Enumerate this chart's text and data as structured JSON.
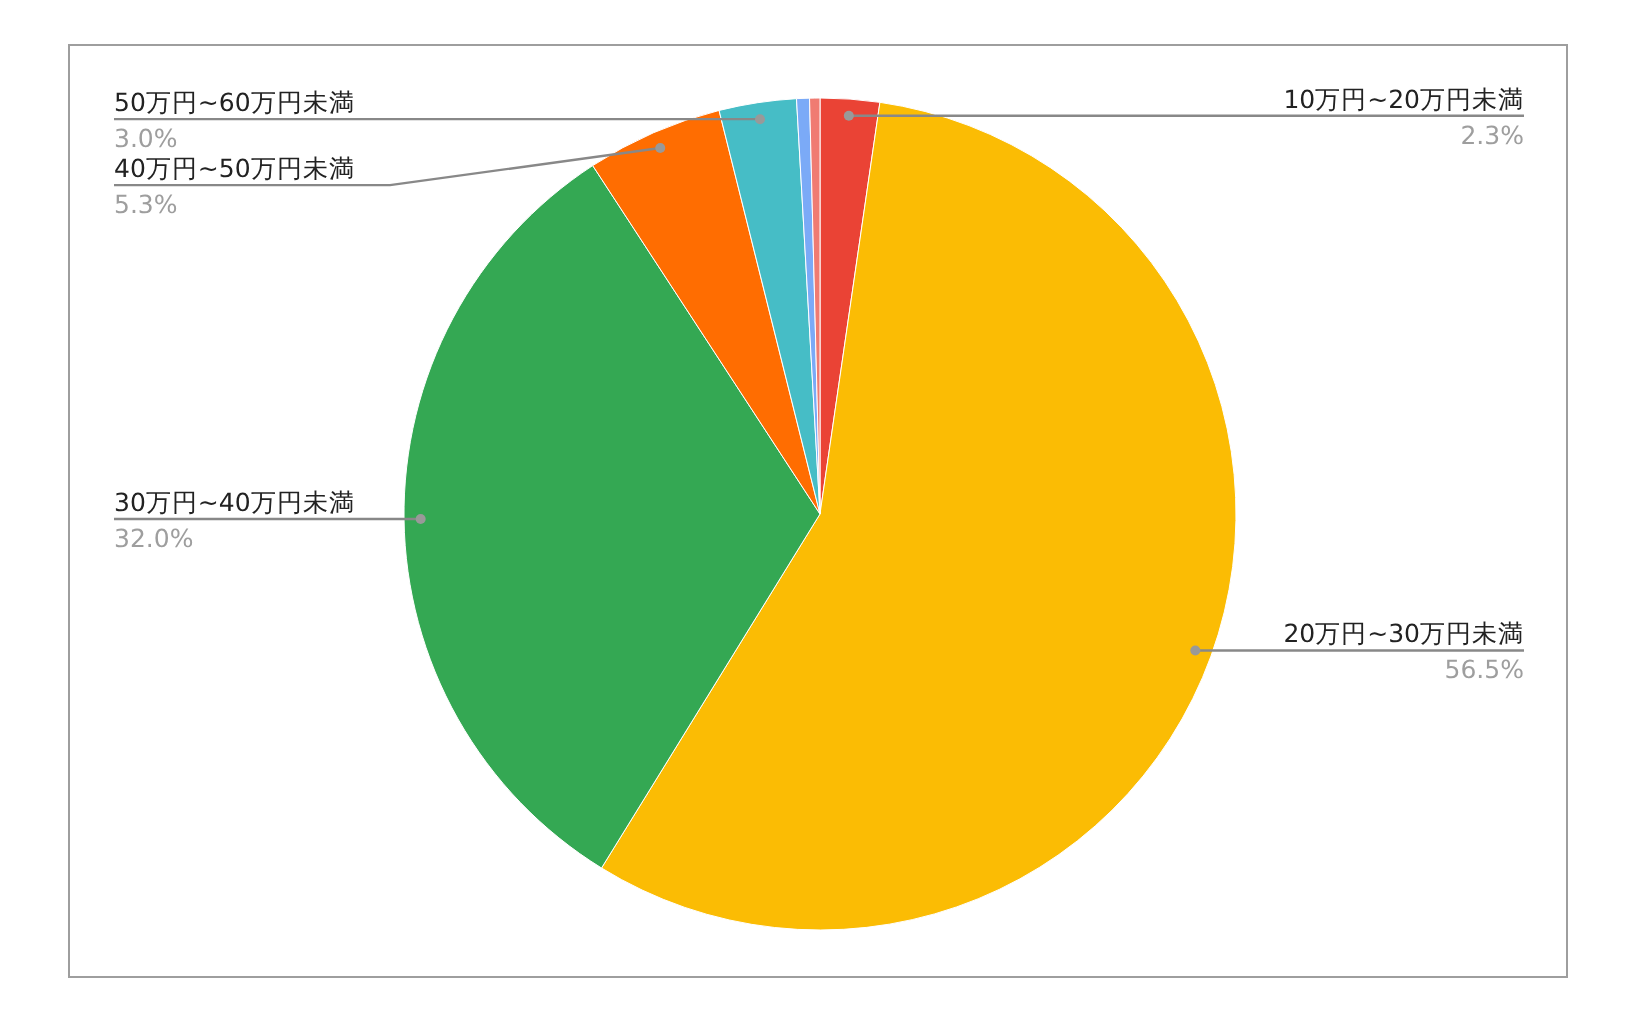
{
  "chart_data": {
    "type": "pie",
    "categories": [
      "10万円~20万円未満",
      "20万円~30万円未満",
      "30万円~40万円未満",
      "40万円~50万円未満",
      "50万円~60万円未満",
      null,
      null
    ],
    "values": [
      2.3,
      56.5,
      32.0,
      5.3,
      3.0,
      0.5,
      0.4
    ],
    "colors": [
      "#ea4335",
      "#fbbc04",
      "#34a853",
      "#ff6d01",
      "#46bdc6",
      "#7baaf7",
      "#f07b72"
    ],
    "value_labels": [
      "2.3%",
      "56.5%",
      "32.0%",
      "5.3%",
      "3.0%",
      null,
      null
    ]
  }
}
